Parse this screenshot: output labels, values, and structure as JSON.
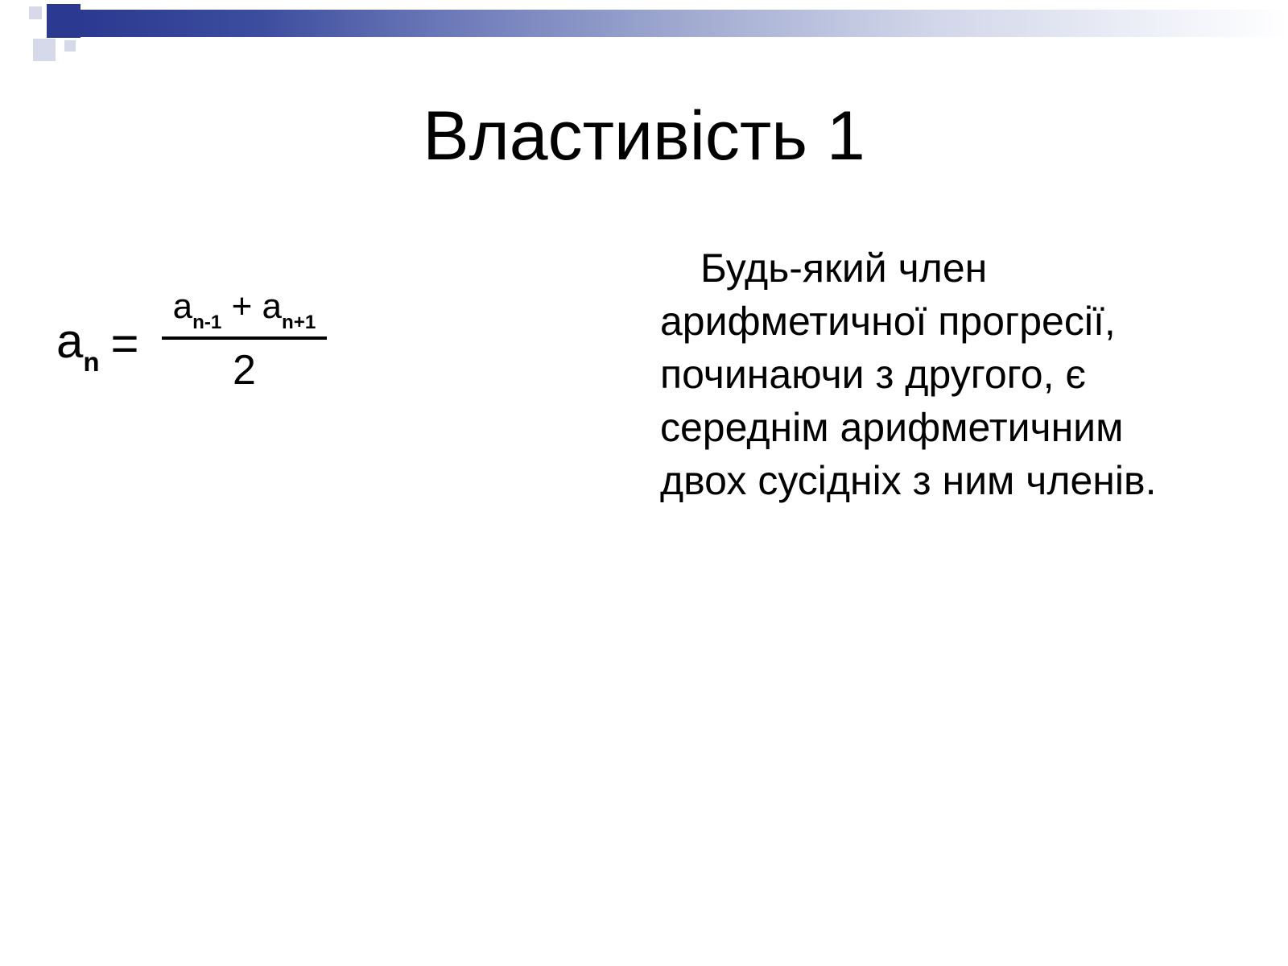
{
  "slide": {
    "title": "Властивість 1",
    "formula": {
      "var": "а",
      "sub_n": "n",
      "sub_nm1": "n-1",
      "sub_np1": "n+1",
      "equals": "=",
      "plus": "+",
      "denominator": "2"
    },
    "body": "Будь-який член арифметичної прогресії, починаючи з другого, є середнім арифметичним двох сусідніх з ним членів.",
    "colors": {
      "accent": "#2b3990",
      "accent_light": "#d5d9ea",
      "text": "#000000",
      "background": "#ffffff"
    },
    "typography": {
      "title_fontsize": 86,
      "body_fontsize": 50,
      "formula_fontsize": 60,
      "numerator_fontsize": 44,
      "font_family": "Arial"
    }
  }
}
